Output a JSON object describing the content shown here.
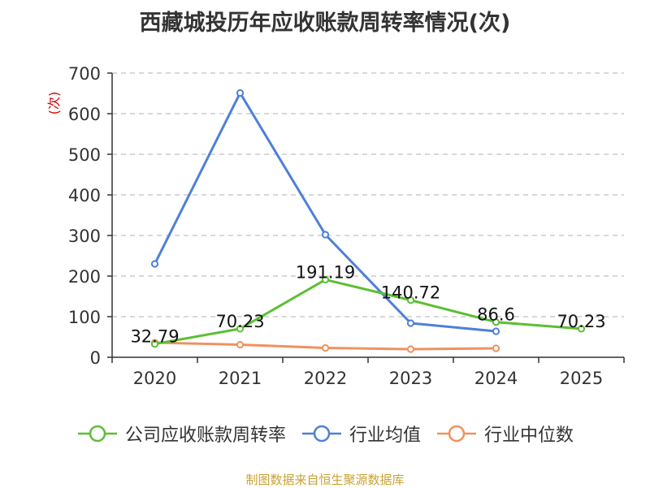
{
  "title": "西藏城投历年应收账款周转率情况(次)",
  "source": "制图数据来自恒生聚源数据库",
  "colors": {
    "company": "#5bbf33",
    "industry_avg": "#4e7fd9",
    "industry_median": "#f0915f",
    "grid": "#cccccc",
    "axis": "#333333",
    "unit": "#d40000"
  },
  "chart_data": {
    "type": "line",
    "title": "西藏城投历年应收账款周转率情况(次)",
    "ylabel": "(次)",
    "xlabel": "",
    "categories": [
      "2020",
      "2021",
      "2022",
      "2023",
      "2024",
      "2025"
    ],
    "ylim": [
      0,
      700
    ],
    "yticks": [
      0,
      100,
      200,
      300,
      400,
      500,
      600,
      700
    ],
    "grid": true,
    "legend_position": "bottom",
    "series": [
      {
        "name": "公司应收账款周转率",
        "color": "#5bbf33",
        "values": [
          32.79,
          70.23,
          191.19,
          140.72,
          86.6,
          70.23
        ],
        "labels": [
          "32.79",
          "70.23",
          "191.19",
          "140.72",
          "86.6",
          "70.23"
        ]
      },
      {
        "name": "行业均值",
        "color": "#4e7fd9",
        "values": [
          230,
          651,
          302,
          84,
          64,
          null
        ]
      },
      {
        "name": "行业中位数",
        "color": "#f0915f",
        "values": [
          36,
          31,
          23,
          20,
          22,
          null
        ]
      }
    ]
  }
}
